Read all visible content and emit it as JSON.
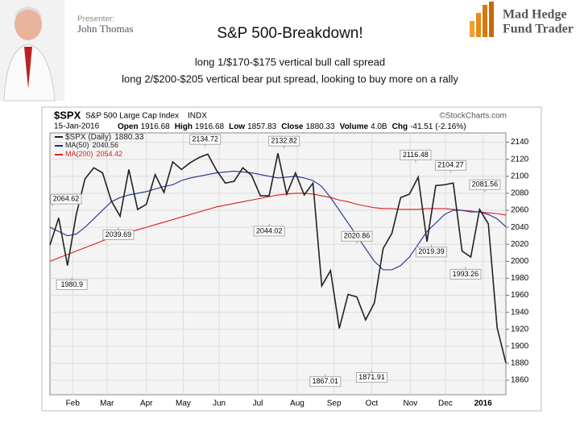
{
  "slide": {
    "title": "S&P 500-Breakdown!",
    "lines": [
      "long 1/$170-$175 vertical bull call spread",
      "long 2/$200-$205 vertical bear put spread, looking to buy more on a rally"
    ],
    "presenter_label": "Presenter:",
    "presenter": "John Thomas",
    "logo": [
      "Mad Hedge",
      "Fund Trader"
    ]
  },
  "chart_data": {
    "type": "line",
    "header": {
      "symbol": "$SPX",
      "name": "S&P 500 Large Cap Index",
      "exchange": "INDX",
      "source": "©StockCharts.com",
      "date": "15-Jan-2016",
      "quote": [
        {
          "label": "Open",
          "value": 1916.68
        },
        {
          "label": "High",
          "value": 1916.68
        },
        {
          "label": "Low",
          "value": 1857.83
        },
        {
          "label": "Close",
          "value": 1880.33
        },
        {
          "label": "Volume",
          "value": "4.0B"
        },
        {
          "label": "Chg",
          "value": "-41.51 (-2.16%)"
        }
      ]
    },
    "xlim": [
      0,
      52
    ],
    "xticks": [
      {
        "value": 2.6,
        "label": "Feb"
      },
      {
        "value": 6.5,
        "label": "Mar"
      },
      {
        "value": 11,
        "label": "Apr"
      },
      {
        "value": 15.2,
        "label": "May"
      },
      {
        "value": 19.3,
        "label": "Jun"
      },
      {
        "value": 23.7,
        "label": "Jul"
      },
      {
        "value": 28.2,
        "label": "Aug"
      },
      {
        "value": 32.4,
        "label": "Sep"
      },
      {
        "value": 36.7,
        "label": "Oct"
      },
      {
        "value": 41.1,
        "label": "Nov"
      },
      {
        "value": 45.1,
        "label": "Dec"
      },
      {
        "value": 49.4,
        "label": "2016"
      }
    ],
    "ylim": [
      1843,
      2151
    ],
    "yticks": [
      1860,
      1880,
      1900,
      1920,
      1940,
      1960,
      1980,
      2000,
      2020,
      2040,
      2060,
      2080,
      2100,
      2120,
      2140
    ],
    "grid": true,
    "series": [
      {
        "name": "$SPX (Daily)",
        "last": 1880.33,
        "color": "#222222",
        "values": [
          2019,
          2051,
          1995,
          2055,
          2097,
          2110,
          2104,
          2071,
          2053,
          2108,
          2061,
          2067,
          2102,
          2081,
          2117,
          2108,
          2116,
          2122,
          2126,
          2107,
          2092,
          2094,
          2110,
          2101,
          2077,
          2077,
          2127,
          2079,
          2104,
          2078,
          2092,
          1971,
          1989,
          1921,
          1961,
          1958,
          1931,
          1951,
          2015,
          2033,
          2075,
          2079,
          2099,
          2023,
          2089,
          2090,
          2092,
          2012,
          2005,
          2061,
          2044,
          1922,
          1880.33
        ]
      },
      {
        "name": "MA(50)",
        "last": 2040.56,
        "color": "#1f2f8f",
        "values": [
          2040,
          2035,
          2030,
          2032,
          2040,
          2050,
          2060,
          2070,
          2075,
          2078,
          2080,
          2082,
          2085,
          2088,
          2090,
          2095,
          2098,
          2100,
          2102,
          2104,
          2105,
          2106,
          2105,
          2104,
          2102,
          2100,
          2098,
          2099,
          2100,
          2098,
          2095,
          2088,
          2075,
          2060,
          2045,
          2030,
          2015,
          2000,
          1990,
          1990,
          1995,
          2005,
          2020,
          2035,
          2045,
          2055,
          2060,
          2060,
          2058,
          2058,
          2055,
          2050,
          2040.56
        ]
      },
      {
        "name": "MA(200)",
        "last": 2054.42,
        "color": "#d42020",
        "values": [
          2000,
          2004,
          2008,
          2012,
          2016,
          2020,
          2024,
          2028,
          2031,
          2034,
          2037,
          2040,
          2043,
          2046,
          2049,
          2052,
          2055,
          2058,
          2061,
          2064,
          2066,
          2068,
          2070,
          2072,
          2074,
          2076,
          2078,
          2079,
          2080,
          2080,
          2079,
          2077,
          2075,
          2072,
          2070,
          2067,
          2065,
          2063,
          2062,
          2062,
          2061,
          2061,
          2061,
          2062,
          2062,
          2062,
          2061,
          2060,
          2059,
          2058,
          2057,
          2056,
          2054.42
        ]
      }
    ],
    "annotations": [
      {
        "x": 0.3,
        "value": 2064.62
      },
      {
        "x": 2.5,
        "value": 1980.9
      },
      {
        "x": 7.8,
        "value": 2039.69
      },
      {
        "x": 17.7,
        "value": 2134.72
      },
      {
        "x": 25,
        "value": 2044.02
      },
      {
        "x": 26.7,
        "value": 2132.82
      },
      {
        "x": 31.4,
        "value": 1867.01
      },
      {
        "x": 35,
        "value": 2020.86
      },
      {
        "x": 36.7,
        "value": 1871.91
      },
      {
        "x": 41.7,
        "value": 2116.48
      },
      {
        "x": 43.5,
        "value": 2019.39
      },
      {
        "x": 45.7,
        "value": 2104.27
      },
      {
        "x": 47.4,
        "value": 1993.26
      },
      {
        "x": 49.6,
        "value": 2081.56
      }
    ]
  }
}
